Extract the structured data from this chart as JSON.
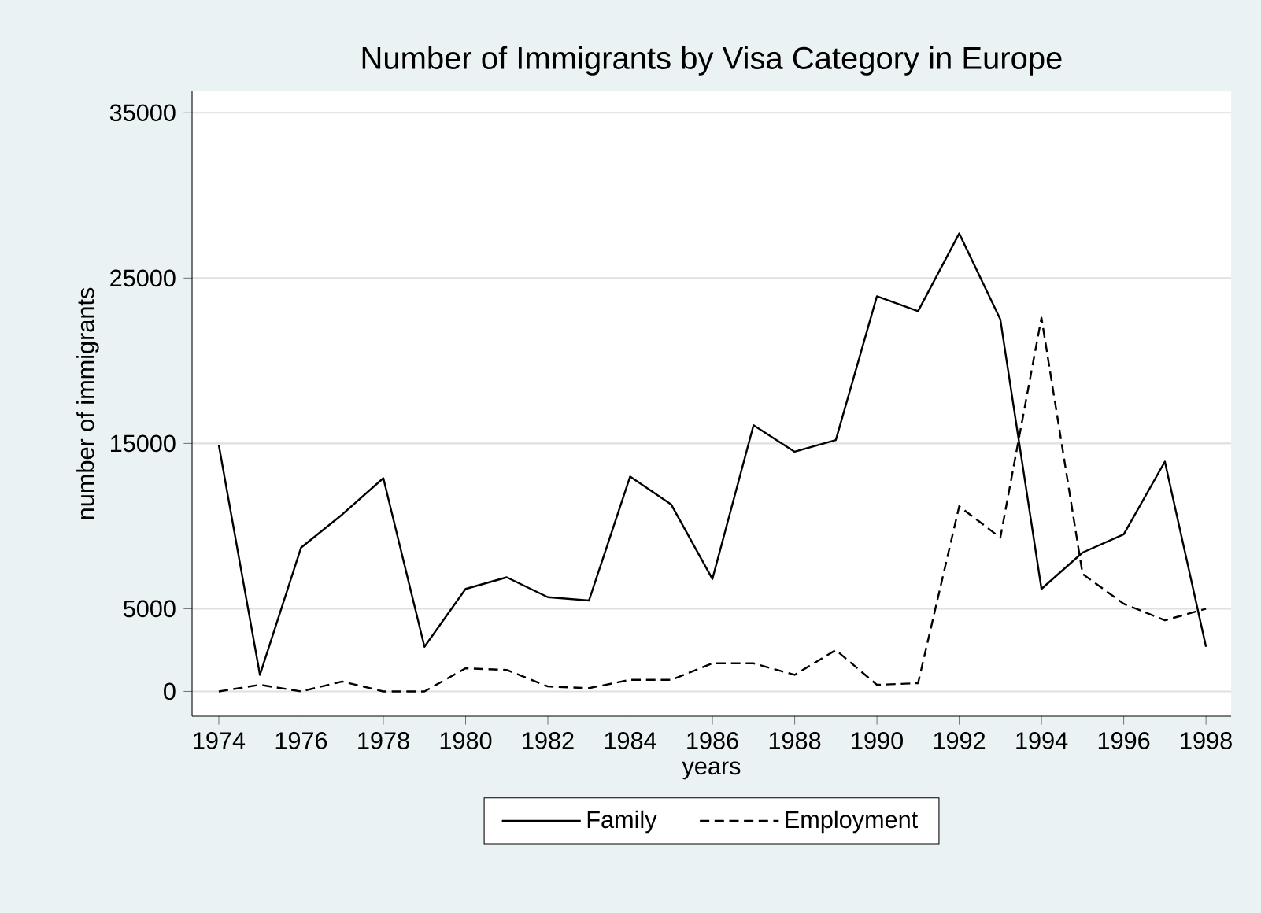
{
  "chart_data": {
    "type": "line",
    "title": "Number of Immigrants by Visa Category in Europe",
    "xlabel": "years",
    "ylabel": "number of immigrants",
    "x": [
      1974,
      1975,
      1976,
      1977,
      1978,
      1979,
      1980,
      1981,
      1982,
      1983,
      1984,
      1985,
      1986,
      1987,
      1988,
      1989,
      1990,
      1991,
      1992,
      1993,
      1994,
      1995,
      1996,
      1997,
      1998
    ],
    "series": [
      {
        "name": "Family",
        "color": "#000000",
        "line_style": "solid",
        "values": [
          14900,
          1000,
          8700,
          10700,
          12900,
          2700,
          6200,
          6900,
          5700,
          5500,
          13000,
          11300,
          6800,
          16100,
          14500,
          15200,
          23900,
          23000,
          27700,
          22500,
          6200,
          8400,
          9500,
          13900,
          2700
        ]
      },
      {
        "name": "Employment",
        "color": "#000000",
        "line_style": "dashed",
        "values": [
          0,
          400,
          0,
          600,
          0,
          0,
          1400,
          1300,
          300,
          200,
          700,
          700,
          1700,
          1700,
          1000,
          2500,
          400,
          500,
          11200,
          9300,
          22600,
          7100,
          5300,
          4300,
          5000
        ]
      }
    ],
    "xlim": [
      1973.35,
      1998.61
    ],
    "ylim": [
      -1500,
      36300
    ],
    "xticks": [
      1974,
      1976,
      1978,
      1980,
      1982,
      1984,
      1986,
      1988,
      1990,
      1992,
      1994,
      1996,
      1998
    ],
    "yticks": [
      0,
      5000,
      15000,
      25000,
      35000
    ],
    "grid": "y",
    "legend": "bottom"
  }
}
